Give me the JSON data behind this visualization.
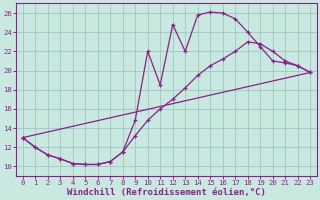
{
  "background_color": "#c8e8e0",
  "grid_color": "#a0c8c0",
  "line_color": "#882288",
  "xlabel": "Windchill (Refroidissement éolien,°C)",
  "xlabel_fontsize": 6.5,
  "xlim_min": -0.5,
  "xlim_max": 23.5,
  "ylim_min": 9.0,
  "ylim_max": 27.0,
  "yticks": [
    10,
    12,
    14,
    16,
    18,
    20,
    22,
    24,
    26
  ],
  "xticks": [
    0,
    1,
    2,
    3,
    4,
    5,
    6,
    7,
    8,
    9,
    10,
    11,
    12,
    13,
    14,
    15,
    16,
    17,
    18,
    19,
    20,
    21,
    22,
    23
  ],
  "curve1_x": [
    0,
    1,
    2,
    3,
    4,
    5,
    6,
    7,
    8,
    9,
    10,
    11,
    12,
    13,
    14,
    15,
    16,
    17,
    18,
    19,
    20,
    21,
    22,
    23
  ],
  "curve1_y": [
    13.0,
    12.0,
    11.2,
    10.8,
    10.3,
    10.2,
    10.2,
    10.5,
    11.5,
    14.8,
    22.0,
    18.5,
    24.8,
    22.0,
    25.8,
    26.1,
    26.0,
    25.4,
    24.0,
    22.5,
    21.0,
    20.8,
    20.5,
    19.8
  ],
  "curve2_x": [
    0,
    1,
    2,
    3,
    4,
    5,
    6,
    7,
    8,
    9,
    10,
    11,
    12,
    13,
    14,
    15,
    16,
    17,
    18,
    19,
    20,
    21,
    22,
    23
  ],
  "curve2_y": [
    13.0,
    12.0,
    11.2,
    10.8,
    10.3,
    10.2,
    10.2,
    10.5,
    11.5,
    13.2,
    14.8,
    16.0,
    17.0,
    18.2,
    19.5,
    20.5,
    21.2,
    22.0,
    23.0,
    22.8,
    22.0,
    21.0,
    20.5,
    19.8
  ],
  "curve3_x": [
    0,
    23
  ],
  "curve3_y": [
    13.0,
    19.8
  ]
}
